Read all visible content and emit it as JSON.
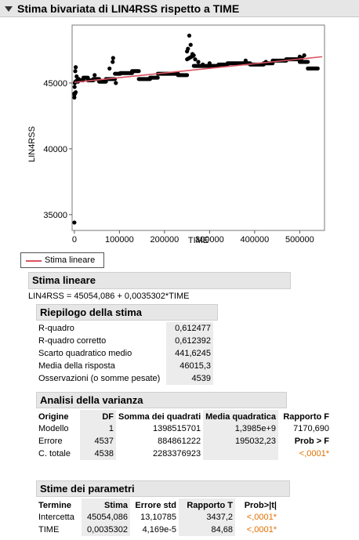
{
  "title": "Stima bivariata di LIN4RSS rispetto a TIME",
  "chart_data": {
    "type": "scatter",
    "xlabel": "TIME",
    "ylabel": "LIN4RSS",
    "xlim": [
      -5000,
      555000
    ],
    "ylim": [
      33800,
      49400
    ],
    "x_ticks": [
      0,
      100000,
      200000,
      300000,
      400000,
      500000
    ],
    "x_tick_labels": [
      "0",
      "100000",
      "200000",
      "300000",
      "400000",
      "500000"
    ],
    "y_ticks": [
      35000,
      40000,
      45000
    ],
    "y_tick_labels": [
      "35000",
      "40000",
      "45000"
    ],
    "fit_line": {
      "name": "Stima lineare",
      "intercept": 45054.086,
      "slope": 0.0035302,
      "color": "#d9535f"
    },
    "segments": [
      {
        "x0": 0,
        "x1": 3000,
        "y0": 44100,
        "y1": 44300
      },
      {
        "x0": 2000,
        "x1": 10000,
        "y0": 45100,
        "y1": 45300
      },
      {
        "x0": 10000,
        "x1": 20000,
        "y0": 45200,
        "y1": 45200
      },
      {
        "x0": 20000,
        "x1": 30000,
        "y0": 45400,
        "y1": 45400
      },
      {
        "x0": 30000,
        "x1": 42000,
        "y0": 45200,
        "y1": 45200
      },
      {
        "x0": 42000,
        "x1": 55000,
        "y0": 45300,
        "y1": 45300
      },
      {
        "x0": 55000,
        "x1": 70000,
        "y0": 45100,
        "y1": 45100
      },
      {
        "x0": 70000,
        "x1": 90000,
        "y0": 45300,
        "y1": 45300
      },
      {
        "x0": 90000,
        "x1": 102000,
        "y0": 45700,
        "y1": 45700
      },
      {
        "x0": 102000,
        "x1": 128000,
        "y0": 45750,
        "y1": 45750
      },
      {
        "x0": 128000,
        "x1": 143000,
        "y0": 45900,
        "y1": 45900
      },
      {
        "x0": 143000,
        "x1": 168000,
        "y0": 45300,
        "y1": 45300
      },
      {
        "x0": 168000,
        "x1": 185000,
        "y0": 45400,
        "y1": 45400
      },
      {
        "x0": 185000,
        "x1": 230000,
        "y0": 45700,
        "y1": 45700
      },
      {
        "x0": 230000,
        "x1": 250000,
        "y0": 45600,
        "y1": 45600
      },
      {
        "x0": 250000,
        "x1": 265000,
        "y0": 46800,
        "y1": 47100
      },
      {
        "x0": 265000,
        "x1": 320000,
        "y0": 46300,
        "y1": 46300
      },
      {
        "x0": 320000,
        "x1": 340000,
        "y0": 46400,
        "y1": 46400
      },
      {
        "x0": 340000,
        "x1": 390000,
        "y0": 46500,
        "y1": 46500
      },
      {
        "x0": 390000,
        "x1": 420000,
        "y0": 46400,
        "y1": 46400
      },
      {
        "x0": 420000,
        "x1": 440000,
        "y0": 46500,
        "y1": 46500
      },
      {
        "x0": 440000,
        "x1": 470000,
        "y0": 46700,
        "y1": 46700
      },
      {
        "x0": 470000,
        "x1": 500000,
        "y0": 46800,
        "y1": 46800
      },
      {
        "x0": 500000,
        "x1": 518000,
        "y0": 46600,
        "y1": 46600
      },
      {
        "x0": 518000,
        "x1": 540000,
        "y0": 46100,
        "y1": 46100
      }
    ],
    "points": [
      [
        0,
        34400
      ],
      [
        0,
        43900
      ],
      [
        0,
        44200
      ],
      [
        500,
        44700
      ],
      [
        1000,
        45000
      ],
      [
        2000,
        45900
      ],
      [
        3000,
        46200
      ],
      [
        5000,
        45500
      ],
      [
        8000,
        45100
      ],
      [
        45000,
        45600
      ],
      [
        78000,
        46100
      ],
      [
        85000,
        46600
      ],
      [
        86000,
        46900
      ],
      [
        92000,
        45000
      ],
      [
        250000,
        47400
      ],
      [
        252000,
        47600
      ],
      [
        255000,
        48600
      ],
      [
        258000,
        47900
      ],
      [
        262000,
        47200
      ],
      [
        268000,
        46800
      ],
      [
        275000,
        46600
      ],
      [
        285000,
        46400
      ],
      [
        300000,
        46500
      ],
      [
        380000,
        46700
      ],
      [
        425000,
        46600
      ],
      [
        500000,
        47000
      ],
      [
        505000,
        46900
      ],
      [
        510000,
        47100
      ]
    ]
  },
  "legend_label": "Stima lineare",
  "fit": {
    "section_title": "Stima lineare",
    "equation": "LIN4RSS = 45054,086 + 0,0035302*TIME"
  },
  "summary": {
    "title": "Riepilogo della stima",
    "rows": [
      {
        "label": "R-quadro",
        "value": "0,612477"
      },
      {
        "label": "R-quadro corretto",
        "value": "0,612392"
      },
      {
        "label": "Scarto quadratico medio",
        "value": "441,6245"
      },
      {
        "label": "Media della risposta",
        "value": "46015,3"
      },
      {
        "label": "Osservazioni (o somme pesate)",
        "value": "4539"
      }
    ]
  },
  "anova": {
    "title": "Analisi della varianza",
    "headers": {
      "origine": "Origine",
      "df": "DF",
      "ss": "Somma dei quadrati",
      "ms": "Media quadratica",
      "f": "Rapporto F"
    },
    "rows": [
      {
        "origine": "Modello",
        "df": "1",
        "ss": "1398515701",
        "ms": "1,3985e+9",
        "f": "7170,690"
      },
      {
        "origine": "Errore",
        "df": "4537",
        "ss": "884861222",
        "ms": "195032,23",
        "f": "Prob > F"
      },
      {
        "origine": "C. totale",
        "df": "4538",
        "ss": "2283376923",
        "ms": "",
        "f": "<,0001*"
      }
    ]
  },
  "params": {
    "title": "Stime dei parametri",
    "headers": {
      "term": "Termine",
      "est": "Stima",
      "se": "Errore std",
      "t": "Rapporto T",
      "p": "Prob>|t|"
    },
    "rows": [
      {
        "term": "Intercetta",
        "est": "45054,086",
        "se": "13,10785",
        "t": "3437,2",
        "p": "<,0001*"
      },
      {
        "term": "TIME",
        "est": "0,0035302",
        "se": "4,169e-5",
        "t": "84,68",
        "p": "<,0001*"
      }
    ]
  }
}
